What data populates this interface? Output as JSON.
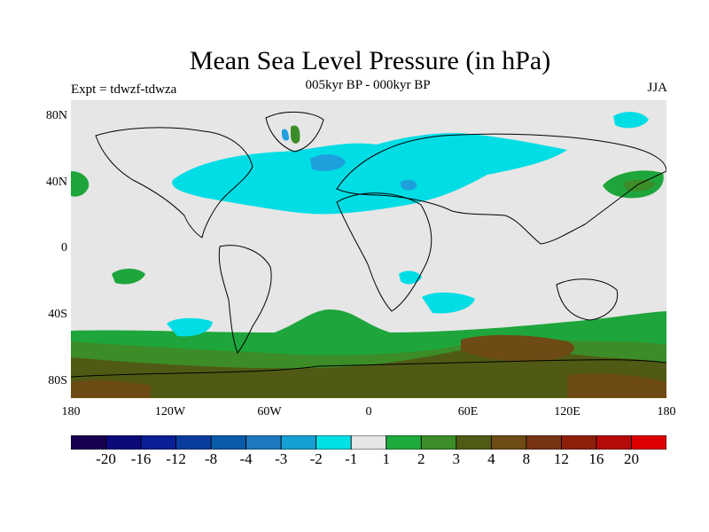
{
  "title": "Mean Sea Level Pressure (in hPa)",
  "subtitle": "005kyr BP - 000kyr BP",
  "experiment": "Expt = tdwzf-tdwza",
  "season": "JJA",
  "chart_data": {
    "type": "heatmap",
    "title": "Mean Sea Level Pressure (in hPa)",
    "subtitle": "005kyr BP - 000kyr BP",
    "xlabel": "",
    "ylabel": "",
    "x_ticks": [
      "180",
      "120W",
      "60W",
      "0",
      "60E",
      "120E",
      "180"
    ],
    "y_ticks": [
      "80N",
      "40N",
      "0",
      "40S",
      "80S"
    ],
    "xlim": [
      -180,
      180
    ],
    "ylim": [
      -90,
      90
    ],
    "colorbar": {
      "labels": [
        "-20",
        "-16",
        "-12",
        "-8",
        "-4",
        "-3",
        "-2",
        "-1",
        "1",
        "2",
        "3",
        "4",
        "8",
        "12",
        "16",
        "20"
      ],
      "colors": [
        "#1a0050",
        "#0a0a78",
        "#0a1e96",
        "#0a3ca0",
        "#0a5aaa",
        "#1e78be",
        "#14a0d2",
        "#00e1e6",
        "#e6e6e6",
        "#1eaa3c",
        "#3c8c28",
        "#505a14",
        "#6e4a14",
        "#783214",
        "#8c1e0a",
        "#b40a0a",
        "#dc0000"
      ]
    }
  },
  "colors": {
    "neutral": "#e6e6e6",
    "cyan": "#00dde5",
    "light_blue": "#1ea0dc",
    "green": "#1ea53c",
    "olive_green": "#3c8c28",
    "dark_olive": "#505a14",
    "brown": "#6e4a14"
  }
}
